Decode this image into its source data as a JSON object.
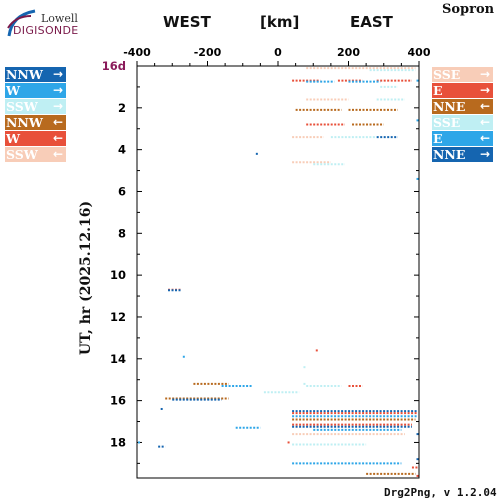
{
  "logo": {
    "top": "Lowell",
    "bottom": "DIGISONDE"
  },
  "station": "Sopron",
  "header": {
    "west": "WEST",
    "unit": "[km]",
    "east": "EAST"
  },
  "footer": "Drg2Png, v 1.2.04",
  "legend_left": [
    {
      "label": "NNW",
      "arrow": "→",
      "bg": "#1565b0",
      "fg": "#ffffff"
    },
    {
      "label": "W",
      "arrow": "→",
      "bg": "#2ea6e8",
      "fg": "#ffffff"
    },
    {
      "label": "SSW",
      "arrow": "→",
      "bg": "#bfeff3",
      "fg": "#ffffff"
    },
    {
      "label": "NNW",
      "arrow": "←",
      "bg": "#b86a1e",
      "fg": "#ffffff"
    },
    {
      "label": "W",
      "arrow": "←",
      "bg": "#e8503a",
      "fg": "#ffffff"
    },
    {
      "label": "SSW",
      "arrow": "←",
      "bg": "#f8cdb8",
      "fg": "#ffffff"
    }
  ],
  "legend_right": [
    {
      "label": "SSE",
      "arrow": "→",
      "bg": "#f8cdb8",
      "fg": "#ffffff"
    },
    {
      "label": "E",
      "arrow": "→",
      "bg": "#e8503a",
      "fg": "#ffffff"
    },
    {
      "label": "NNE",
      "arrow": "←",
      "bg": "#b86a1e",
      "fg": "#ffffff"
    },
    {
      "label": "SSE",
      "arrow": "←",
      "bg": "#bfeff3",
      "fg": "#ffffff"
    },
    {
      "label": "E",
      "arrow": "←",
      "bg": "#2ea6e8",
      "fg": "#ffffff"
    },
    {
      "label": "NNE",
      "arrow": "→",
      "bg": "#1565b0",
      "fg": "#ffffff"
    }
  ],
  "chart_data": {
    "type": "scatter",
    "title": "",
    "xlabel": "[km]",
    "ylabel": "UT, hr (2025.12.16)",
    "xlim": [
      -400,
      400
    ],
    "ylim": [
      0,
      19.7
    ],
    "y_inverted": true,
    "x_ticks": [
      -400,
      -200,
      0,
      200,
      400
    ],
    "x_tick_labels": [
      "-400",
      "-200",
      "0",
      "200",
      "400"
    ],
    "y_ticks": [
      0,
      2,
      4,
      6,
      8,
      10,
      12,
      14,
      16,
      18
    ],
    "y_tick_labels": [
      "16d",
      "2",
      "4",
      "6",
      "8",
      "10",
      "12",
      "14",
      "16",
      "18"
    ],
    "grid": false,
    "colors": {
      "NNW_out": "#1565b0",
      "W_out": "#2ea6e8",
      "SSW_out": "#bfeff3",
      "NNW_in": "#b86a1e",
      "W_in": "#e8503a",
      "SSW_in": "#f8cdb8",
      "first_tick": "#8a1a5a"
    },
    "segments": [
      {
        "x1": 80,
        "x2": 390,
        "y": 0.1,
        "color": "#f8cdb8"
      },
      {
        "x1": 260,
        "x2": 390,
        "y": 0.2,
        "color": "#bfeff3"
      },
      {
        "x1": 40,
        "x2": 120,
        "y": 0.7,
        "color": "#e8503a"
      },
      {
        "x1": 170,
        "x2": 240,
        "y": 0.7,
        "color": "#e8503a"
      },
      {
        "x1": 280,
        "x2": 380,
        "y": 0.7,
        "color": "#e8503a"
      },
      {
        "x1": 80,
        "x2": 160,
        "y": 0.75,
        "color": "#2ea6e8"
      },
      {
        "x1": 200,
        "x2": 290,
        "y": 0.75,
        "color": "#2ea6e8"
      },
      {
        "x1": 290,
        "x2": 340,
        "y": 1.0,
        "color": "#bfeff3"
      },
      {
        "x1": 80,
        "x2": 200,
        "y": 1.6,
        "color": "#f8cdb8"
      },
      {
        "x1": 280,
        "x2": 360,
        "y": 1.6,
        "color": "#bfeff3"
      },
      {
        "x1": 50,
        "x2": 180,
        "y": 2.1,
        "color": "#b86a1e"
      },
      {
        "x1": 200,
        "x2": 340,
        "y": 2.1,
        "color": "#b86a1e"
      },
      {
        "x1": 80,
        "x2": 190,
        "y": 2.8,
        "color": "#e8503a"
      },
      {
        "x1": 210,
        "x2": 300,
        "y": 2.8,
        "color": "#b86a1e"
      },
      {
        "x1": 40,
        "x2": 130,
        "y": 3.4,
        "color": "#f8cdb8"
      },
      {
        "x1": 150,
        "x2": 280,
        "y": 3.4,
        "color": "#bfeff3"
      },
      {
        "x1": 280,
        "x2": 340,
        "y": 3.4,
        "color": "#1565b0"
      },
      {
        "x1": 40,
        "x2": 150,
        "y": 4.6,
        "color": "#f8cdb8"
      },
      {
        "x1": 100,
        "x2": 190,
        "y": 4.7,
        "color": "#bfeff3"
      },
      {
        "x1": -312,
        "x2": -274,
        "y": 10.7,
        "color": "#e8503a"
      },
      {
        "x1": -312,
        "x2": -274,
        "y": 10.72,
        "color": "#1565b0"
      },
      {
        "x1": -270,
        "x2": -260,
        "y": 13.9,
        "color": "#2ea6e8"
      },
      {
        "x1": -240,
        "x2": -140,
        "y": 15.2,
        "color": "#b86a1e"
      },
      {
        "x1": -160,
        "x2": -75,
        "y": 15.3,
        "color": "#2ea6e8"
      },
      {
        "x1": -320,
        "x2": -140,
        "y": 15.9,
        "color": "#b86a1e"
      },
      {
        "x1": -300,
        "x2": -160,
        "y": 15.95,
        "color": "#1565b0"
      },
      {
        "x1": -40,
        "x2": 60,
        "y": 15.6,
        "color": "#bfeff3"
      },
      {
        "x1": 80,
        "x2": 180,
        "y": 15.3,
        "color": "#bfeff3"
      },
      {
        "x1": 200,
        "x2": 240,
        "y": 15.3,
        "color": "#e8503a"
      },
      {
        "x1": 40,
        "x2": 400,
        "y": 16.5,
        "color": "#1565b0"
      },
      {
        "x1": 40,
        "x2": 400,
        "y": 16.6,
        "color": "#e8503a"
      },
      {
        "x1": 40,
        "x2": 400,
        "y": 16.75,
        "color": "#2ea6e8"
      },
      {
        "x1": 40,
        "x2": 390,
        "y": 16.9,
        "color": "#b86a1e"
      },
      {
        "x1": 40,
        "x2": 380,
        "y": 17.15,
        "color": "#e8503a"
      },
      {
        "x1": 40,
        "x2": 380,
        "y": 17.25,
        "color": "#1565b0"
      },
      {
        "x1": 100,
        "x2": 350,
        "y": 17.4,
        "color": "#2ea6e8"
      },
      {
        "x1": 40,
        "x2": 360,
        "y": 17.6,
        "color": "#f8cdb8"
      },
      {
        "x1": -120,
        "x2": -50,
        "y": 17.3,
        "color": "#2ea6e8"
      },
      {
        "x1": -420,
        "x2": -390,
        "y": 18.0,
        "color": "#2ea6e8"
      },
      {
        "x1": -340,
        "x2": -320,
        "y": 18.2,
        "color": "#1565b0"
      },
      {
        "x1": 40,
        "x2": 250,
        "y": 18.1,
        "color": "#bfeff3"
      },
      {
        "x1": 40,
        "x2": 350,
        "y": 19.0,
        "color": "#2ea6e8"
      },
      {
        "x1": 250,
        "x2": 390,
        "y": 19.5,
        "color": "#b86a1e"
      },
      {
        "x1": 380,
        "x2": 400,
        "y": 19.2,
        "color": "#e8503a"
      }
    ],
    "points": [
      {
        "x": -60,
        "y": 4.2,
        "color": "#1565b0"
      },
      {
        "x": 398,
        "y": 0.7,
        "color": "#2ea6e8"
      },
      {
        "x": 398,
        "y": 2.6,
        "color": "#2ea6e8"
      },
      {
        "x": 398,
        "y": 5.4,
        "color": "#2ea6e8"
      },
      {
        "x": 110,
        "y": 13.6,
        "color": "#e8503a"
      },
      {
        "x": 75,
        "y": 14.4,
        "color": "#bfeff3"
      },
      {
        "x": 75,
        "y": 15.2,
        "color": "#bfeff3"
      },
      {
        "x": -330,
        "y": 16.4,
        "color": "#1565b0"
      },
      {
        "x": 30,
        "y": 18.0,
        "color": "#e8503a"
      },
      {
        "x": 398,
        "y": 17.6,
        "color": "#1565b0"
      },
      {
        "x": 398,
        "y": 18.8,
        "color": "#1565b0"
      },
      {
        "x": 398,
        "y": 19.6,
        "color": "#e8503a"
      }
    ]
  }
}
